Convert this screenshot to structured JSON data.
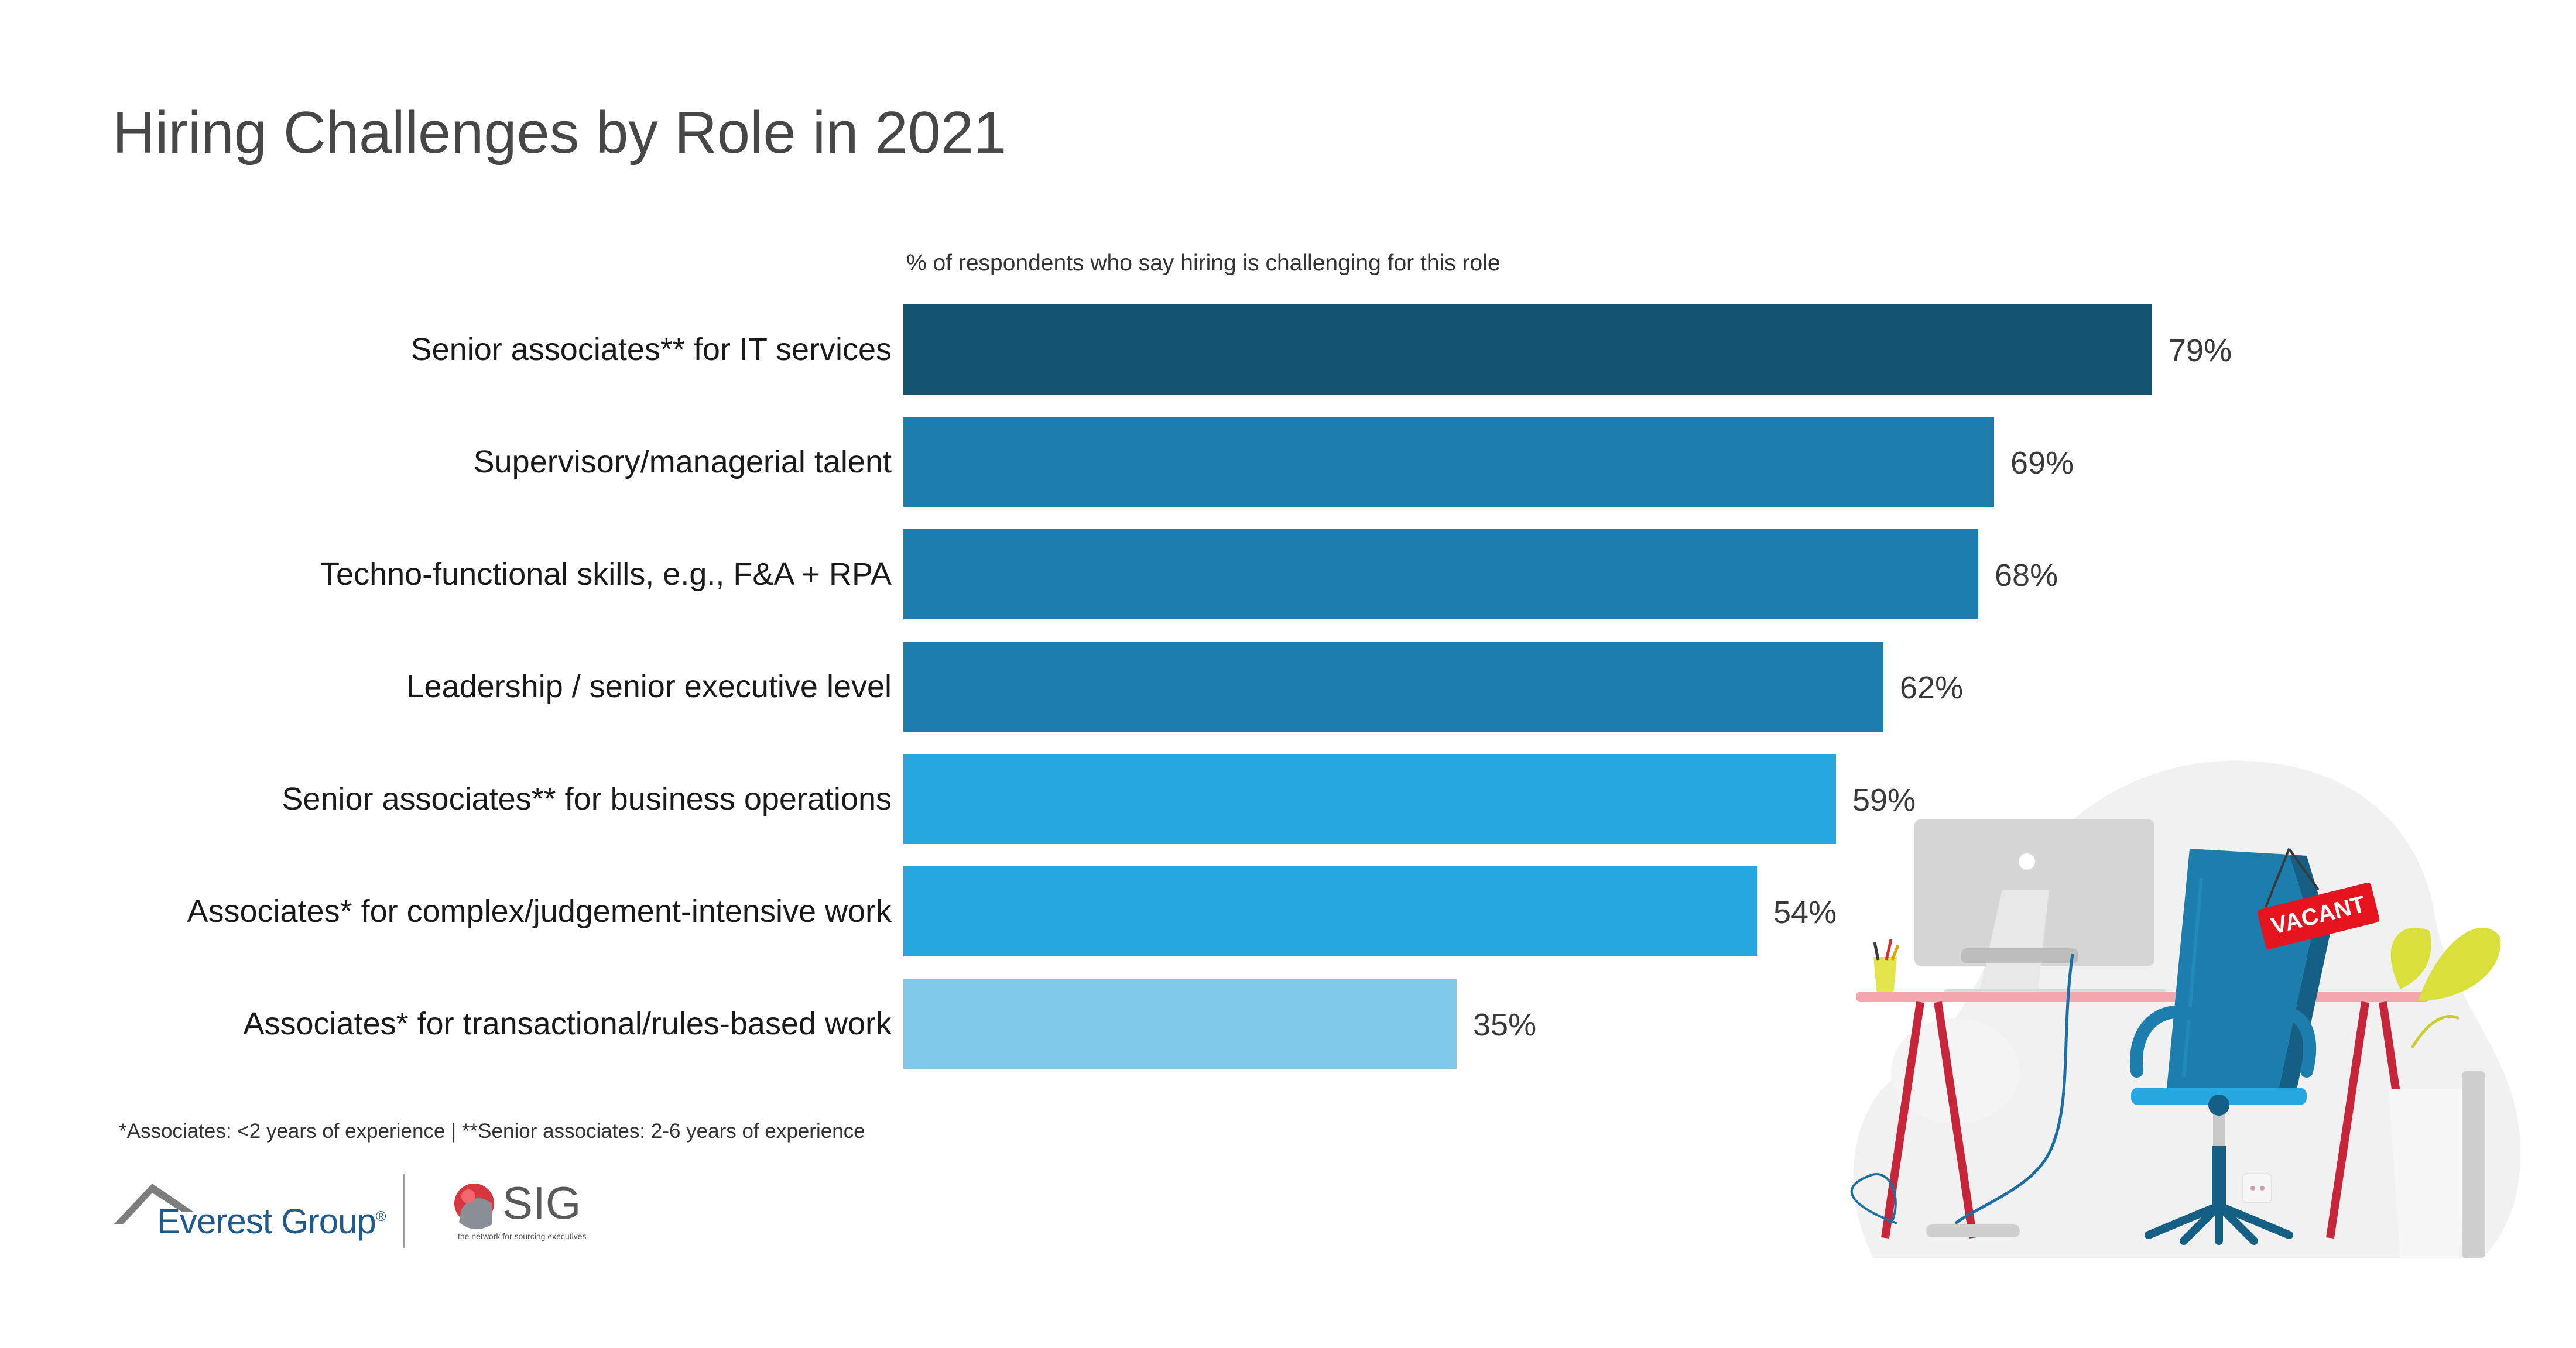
{
  "chart_data": {
    "type": "bar",
    "orientation": "horizontal",
    "title": "Hiring Challenges by Role in 2021",
    "subtitle": "% of respondents who say hiring is challenging for this role",
    "categories": [
      "Senior associates** for IT services",
      "Supervisory/managerial talent",
      "Techno-functional skills, e.g., F&A + RPA",
      "Leadership / senior executive level",
      "Senior associates** for business operations",
      "Associates* for complex/judgement-intensive work",
      "Associates* for transactional/rules-based work"
    ],
    "values": [
      79,
      69,
      68,
      62,
      59,
      54,
      35
    ],
    "value_labels": [
      "79%",
      "69%",
      "68%",
      "62%",
      "59%",
      "54%",
      "35%"
    ],
    "bar_colors": [
      "#12546f",
      "#1b7eac",
      "#1b7eac",
      "#1b7eac",
      "#27a7e0",
      "#27a7e0",
      "#80c9ea"
    ],
    "unit": "%",
    "xlim": [
      0,
      100
    ],
    "grid": false,
    "legend": "none"
  },
  "footnote": "*Associates: <2 years of experience | **Senior associates: 2-6 years of experience",
  "logos": {
    "everest": "Everest Group",
    "everest_mark": "®",
    "sig": "SIG",
    "sig_tagline": "the network for sourcing executives"
  },
  "illustration": {
    "sign_text": "VACANT",
    "sign_color": "#e5141f"
  }
}
